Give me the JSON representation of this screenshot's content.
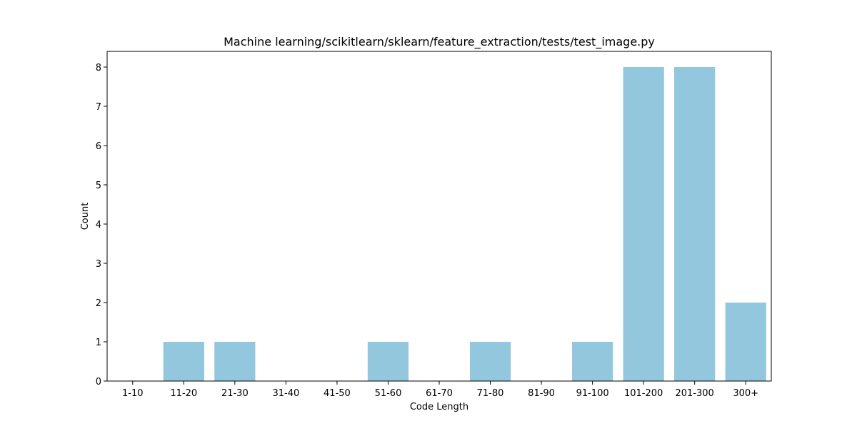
{
  "chart_data": {
    "type": "bar",
    "title": "Machine learning/scikitlearn/sklearn/feature_extraction/tests/test_image.py",
    "xlabel": "Code Length",
    "ylabel": "Count",
    "categories": [
      "1-10",
      "11-20",
      "21-30",
      "31-40",
      "41-50",
      "51-60",
      "61-70",
      "71-80",
      "81-90",
      "91-100",
      "101-200",
      "201-300",
      "300+"
    ],
    "values": [
      0,
      1,
      1,
      0,
      0,
      1,
      0,
      1,
      0,
      1,
      8,
      8,
      2
    ],
    "ylim": [
      0,
      8.4
    ],
    "yticks": [
      0,
      1,
      2,
      3,
      4,
      5,
      6,
      7,
      8
    ],
    "grid": false,
    "colors": {
      "bar": "#92c7de",
      "axis": "#000000"
    }
  }
}
